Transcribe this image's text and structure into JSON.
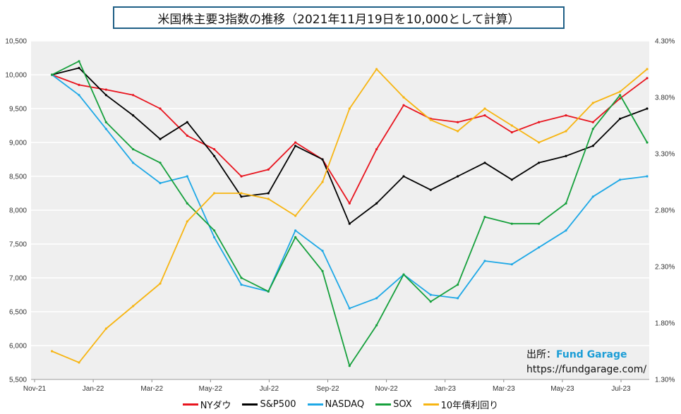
{
  "chart_data": {
    "type": "line",
    "title": "米国株主要3指数の推移（2021年11月19日を10,000として計算）",
    "x_tick_labels": [
      "Nov-21",
      "Jan-22",
      "Mar-22",
      "May-22",
      "Jul-22",
      "Sep-22",
      "Nov-22",
      "Jan-23",
      "Mar-23",
      "May-23",
      "Jul-23"
    ],
    "x_dates": [
      "2021-11-19",
      "2021-12-17",
      "2022-01-14",
      "2022-02-11",
      "2022-03-11",
      "2022-04-08",
      "2022-05-06",
      "2022-06-03",
      "2022-07-01",
      "2022-07-29",
      "2022-08-26",
      "2022-09-23",
      "2022-10-21",
      "2022-11-18",
      "2022-12-16",
      "2023-01-13",
      "2023-02-10",
      "2023-03-10",
      "2023-04-07",
      "2023-05-05",
      "2023-06-02",
      "2023-06-30",
      "2023-07-28"
    ],
    "y_left": {
      "min": 5500,
      "max": 10500,
      "ticks": [
        "5,500",
        "6,000",
        "6,500",
        "7,000",
        "7,500",
        "8,000",
        "8,500",
        "9,000",
        "9,500",
        "10,000",
        "10,500"
      ]
    },
    "y_right": {
      "min": 1.3,
      "max": 4.3,
      "ticks": [
        "1.30%",
        "1.80%",
        "2.30%",
        "2.80%",
        "3.30%",
        "3.80%",
        "4.30%"
      ]
    },
    "series": [
      {
        "name": "NYダウ",
        "color": "#e8141e",
        "axis": "left",
        "values": [
          10000,
          9850,
          9780,
          9700,
          9500,
          9100,
          8900,
          8500,
          8600,
          9000,
          8750,
          8100,
          8900,
          9550,
          9350,
          9300,
          9400,
          9150,
          9300,
          9400,
          9300,
          9650,
          9950
        ]
      },
      {
        "name": "S&P500",
        "color": "#000000",
        "axis": "left",
        "values": [
          10000,
          10100,
          9700,
          9400,
          9050,
          9300,
          8800,
          8200,
          8250,
          8950,
          8750,
          7800,
          8100,
          8500,
          8300,
          8500,
          8700,
          8450,
          8700,
          8800,
          8950,
          9350,
          9500
        ]
      },
      {
        "name": "NASDAQ",
        "color": "#1ea8e6",
        "axis": "left",
        "values": [
          10000,
          9700,
          9200,
          8700,
          8400,
          8500,
          7600,
          6900,
          6800,
          7700,
          7400,
          6550,
          6700,
          7050,
          6750,
          6700,
          7250,
          7200,
          7450,
          7700,
          8200,
          8450,
          8500
        ]
      },
      {
        "name": "SOX",
        "color": "#16a03c",
        "axis": "left",
        "values": [
          10000,
          10200,
          9300,
          8900,
          8700,
          8100,
          7700,
          7000,
          6800,
          7600,
          7100,
          5700,
          6300,
          7050,
          6650,
          6900,
          7900,
          7800,
          7800,
          8100,
          9200,
          9700,
          9000
        ]
      },
      {
        "name": "10年債利回り",
        "color": "#f7b512",
        "axis": "right",
        "values": [
          1.55,
          1.45,
          1.75,
          1.95,
          2.15,
          2.7,
          2.95,
          2.95,
          2.9,
          2.75,
          3.05,
          3.7,
          4.05,
          3.8,
          3.6,
          3.5,
          3.7,
          3.55,
          3.4,
          3.5,
          3.75,
          3.85,
          4.05
        ]
      }
    ],
    "grid": true,
    "legend_position": "bottom"
  },
  "source": {
    "label": "出所：",
    "brand": "Fund Garage",
    "url": "https://fundgarage.com/"
  }
}
